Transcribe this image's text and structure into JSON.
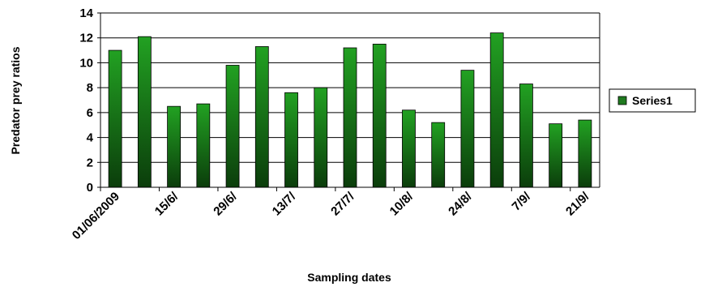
{
  "chart_data": {
    "type": "bar",
    "title": "",
    "xlabel": "Sampling dates",
    "ylabel": "Predator prey ratios",
    "ylim": [
      0,
      14
    ],
    "yticks": [
      0,
      2,
      4,
      6,
      8,
      10,
      12,
      14
    ],
    "grid": true,
    "legend_position": "right",
    "bar_color": "#1f7a1f",
    "x_tick_labels": [
      "01/06/2009",
      "15/6/",
      "29/6/",
      "13/7/",
      "27/7/",
      "10/8/",
      "24/8/",
      "7/9/",
      "21/9/"
    ],
    "series": [
      {
        "name": "Series1",
        "values": [
          11.0,
          12.1,
          6.5,
          6.7,
          9.8,
          11.3,
          7.6,
          8.0,
          11.2,
          11.5,
          6.2,
          5.2,
          9.4,
          12.4,
          8.3,
          5.1,
          5.4
        ]
      }
    ]
  }
}
